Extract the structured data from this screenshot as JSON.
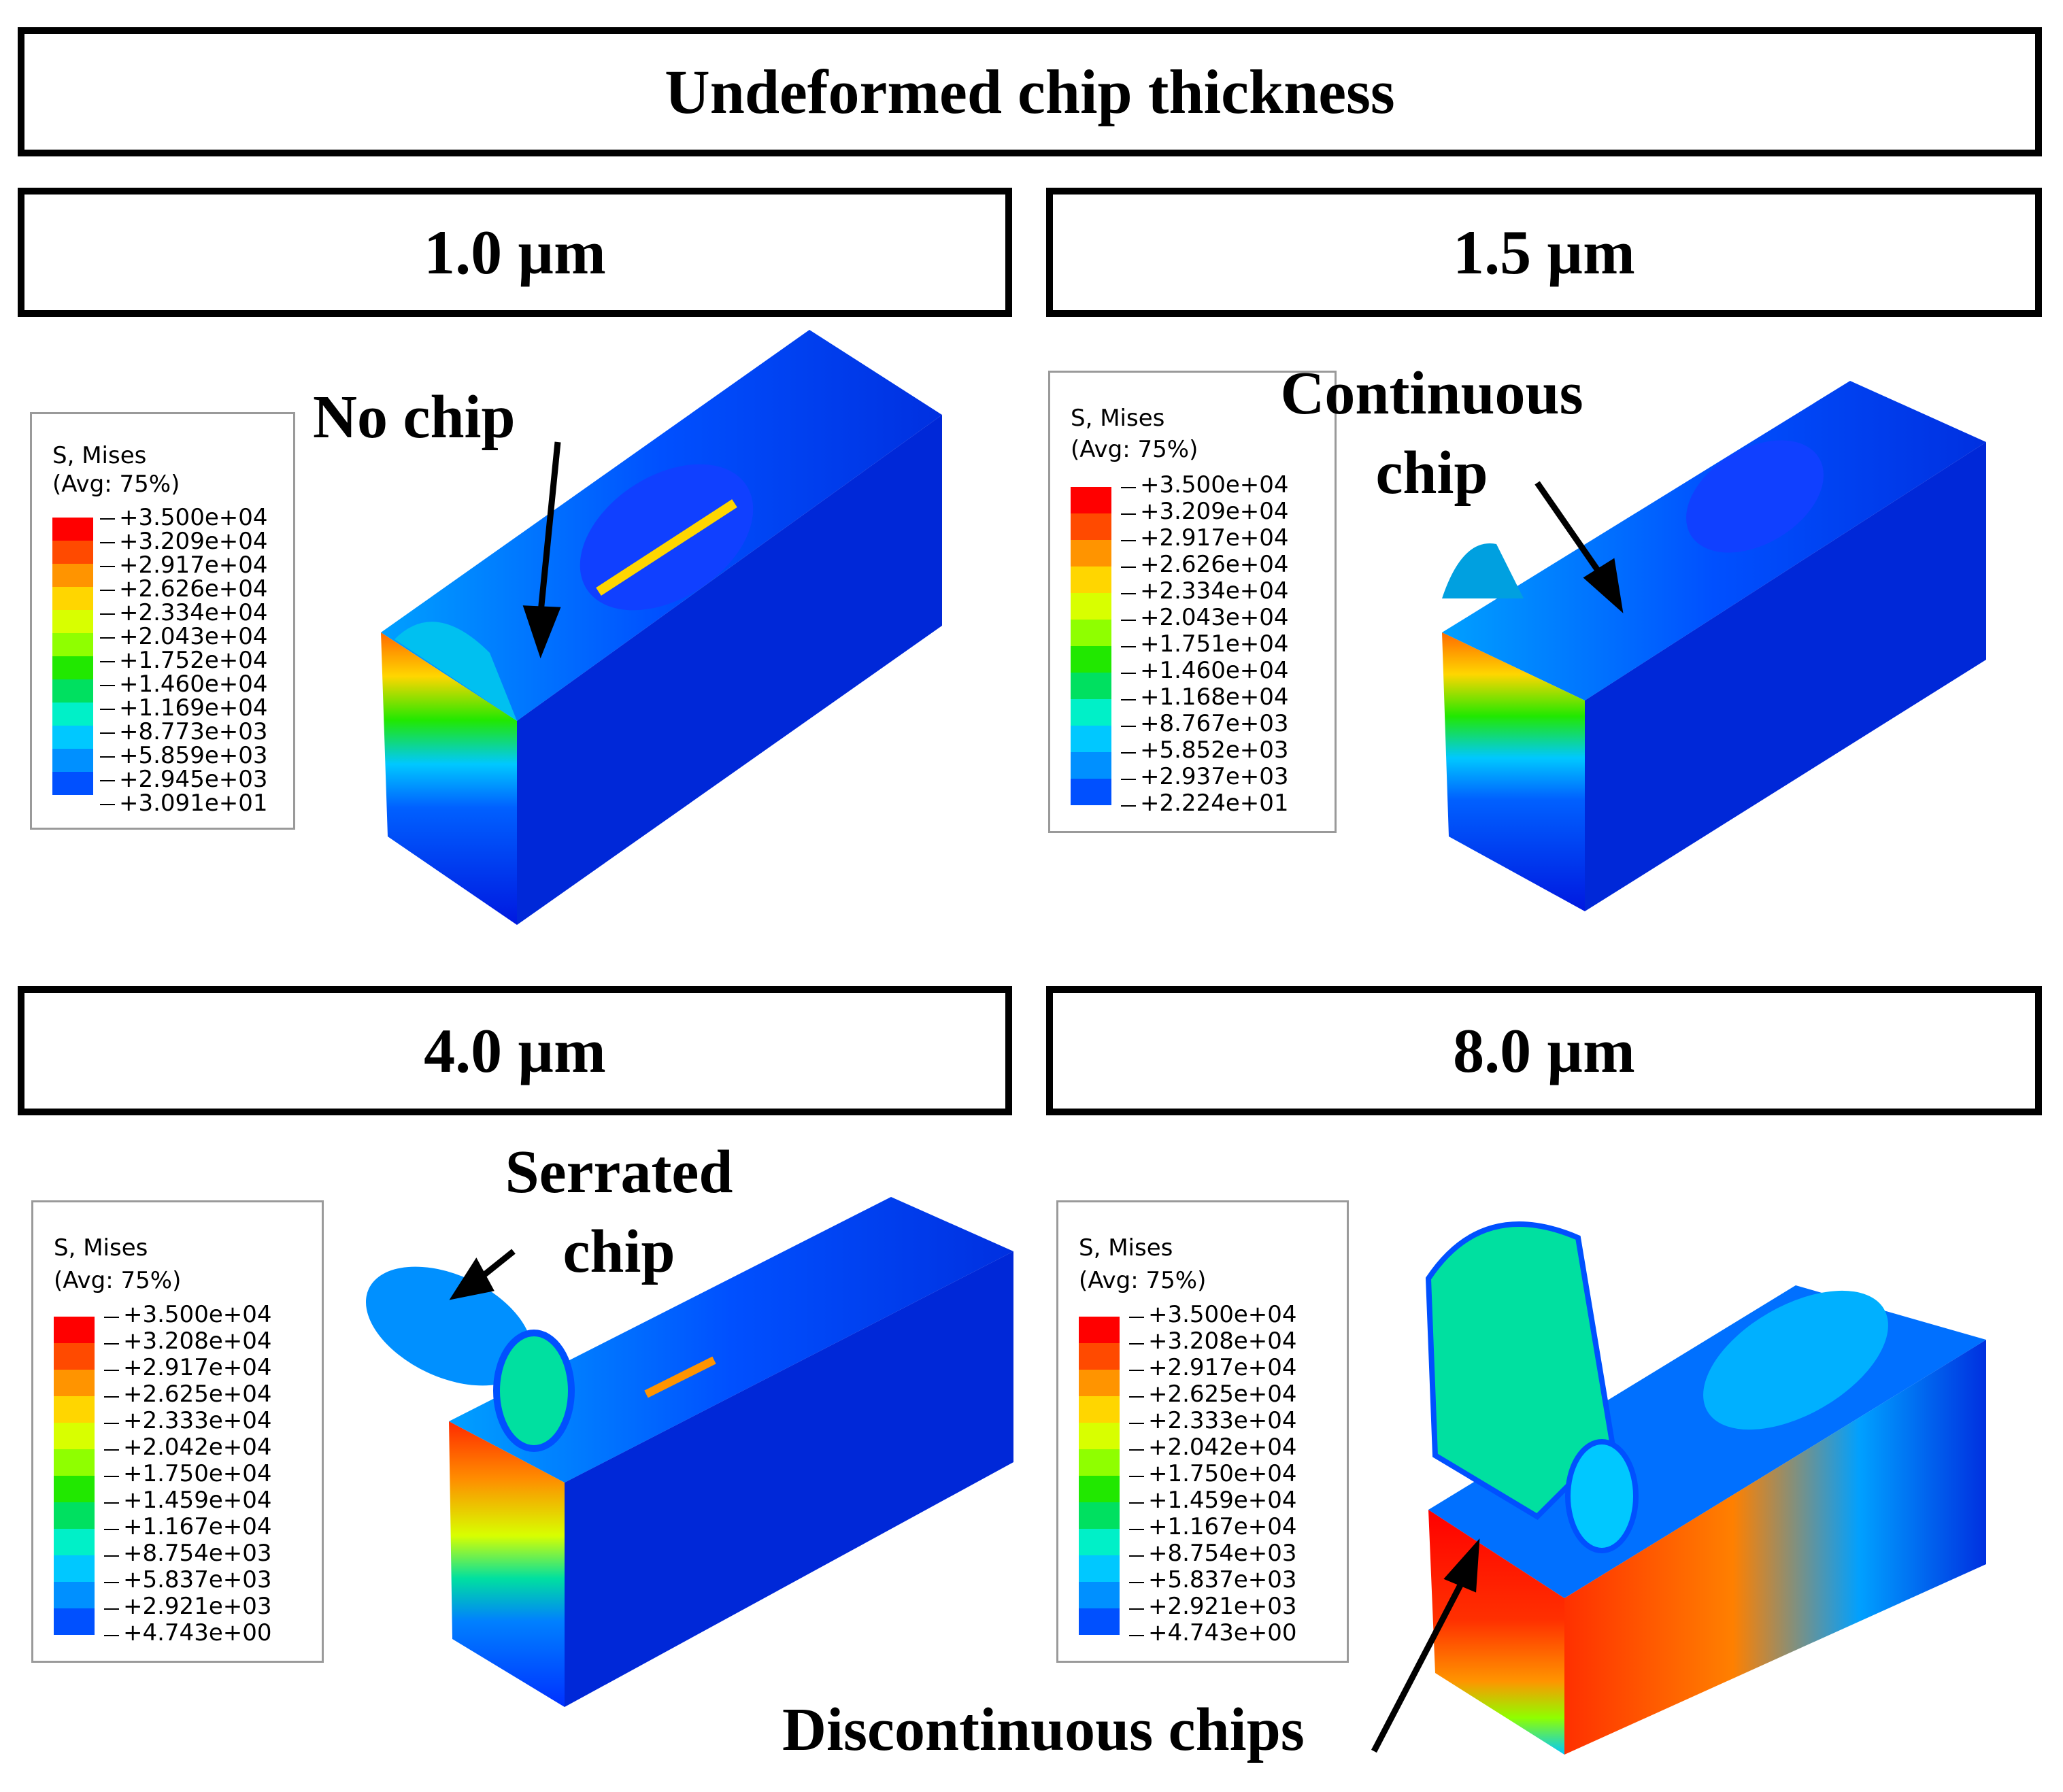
{
  "figure": {
    "title": "Undeformed chip thickness",
    "panels": [
      {
        "label": "1.0 µm",
        "annotation": "No chip",
        "legend": {
          "title_line1": "S, Mises",
          "title_line2": "(Avg: 75%)",
          "values": [
            "+3.500e+04",
            "+3.209e+04",
            "+2.917e+04",
            "+2.626e+04",
            "+2.334e+04",
            "+2.043e+04",
            "+1.752e+04",
            "+1.460e+04",
            "+1.169e+04",
            "+8.773e+03",
            "+5.859e+03",
            "+2.945e+03",
            "+3.091e+01"
          ]
        }
      },
      {
        "label": "1.5 µm",
        "annotation_line1": "Continuous",
        "annotation_line2": "chip",
        "legend": {
          "title_line1": "S, Mises",
          "title_line2": "(Avg: 75%)",
          "values": [
            "+3.500e+04",
            "+3.209e+04",
            "+2.917e+04",
            "+2.626e+04",
            "+2.334e+04",
            "+2.043e+04",
            "+1.751e+04",
            "+1.460e+04",
            "+1.168e+04",
            "+8.767e+03",
            "+5.852e+03",
            "+2.937e+03",
            "+2.224e+01"
          ]
        }
      },
      {
        "label": "4.0 µm",
        "annotation_line1": "Serrated",
        "annotation_line2": "chip",
        "legend": {
          "title_line1": "S, Mises",
          "title_line2": "(Avg: 75%)",
          "values": [
            "+3.500e+04",
            "+3.208e+04",
            "+2.917e+04",
            "+2.625e+04",
            "+2.333e+04",
            "+2.042e+04",
            "+1.750e+04",
            "+1.459e+04",
            "+1.167e+04",
            "+8.754e+03",
            "+5.837e+03",
            "+2.921e+03",
            "+4.743e+00"
          ]
        }
      },
      {
        "label": "8.0 µm",
        "annotation": "Discontinuous chips",
        "legend": {
          "title_line1": "S, Mises",
          "title_line2": "(Avg: 75%)",
          "values": [
            "+3.500e+04",
            "+3.208e+04",
            "+2.917e+04",
            "+2.625e+04",
            "+2.333e+04",
            "+2.042e+04",
            "+1.750e+04",
            "+1.459e+04",
            "+1.167e+04",
            "+8.754e+03",
            "+5.837e+03",
            "+2.921e+03",
            "+4.743e+00"
          ]
        }
      }
    ],
    "colormap": [
      "#ff0000",
      "#ff4a00",
      "#ff9400",
      "#ffd600",
      "#d8ff00",
      "#8fff00",
      "#21e800",
      "#00e060",
      "#00f0c8",
      "#00c8ff",
      "#0090ff",
      "#0050ff",
      "#0000ff"
    ]
  }
}
